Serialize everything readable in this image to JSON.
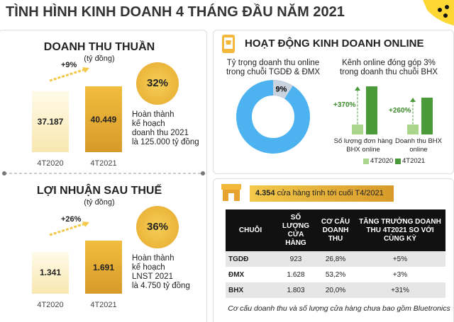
{
  "title": "TÌNH HÌNH KINH DOANH 4 THÁNG ĐẦU NĂM 2021",
  "revenue": {
    "title": "DOANH THU THUẦN",
    "unit": "(tỷ đồng)",
    "categories": [
      "4T2020",
      "4T2021"
    ],
    "values": [
      37187,
      40449
    ],
    "value_labels": [
      "37.187",
      "40.449"
    ],
    "growth": "+9%",
    "completion": "32%",
    "note_lines": [
      "Hoàn thành",
      "kế hoạch",
      "doanh thu 2021",
      "là 125.000 tỷ đồng"
    ]
  },
  "profit": {
    "title": "LỢI NHUẬN SAU THUẾ",
    "unit": "(tỷ đồng)",
    "categories": [
      "4T2020",
      "4T2021"
    ],
    "values": [
      1341,
      1691
    ],
    "value_labels": [
      "1.341",
      "1.691"
    ],
    "growth": "+26%",
    "completion": "36%",
    "note_lines": [
      "Hoàn thành",
      "kế hoạch",
      "LNST 2021",
      "là 4.750 tỷ đồng"
    ]
  },
  "online": {
    "title": "HOẠT ĐỘNG KINH DOANH ONLINE",
    "share": {
      "caption_lines": [
        "Tỷ trọng doanh thu online",
        "trong chuỗi TGDĐ & ĐMX"
      ],
      "value": 9,
      "value_label": "9%"
    },
    "bhx": {
      "caption_lines": [
        "Kênh online đóng góp 3%",
        "trong doanh thu chuỗi BHX"
      ],
      "categories": [
        [
          "Số lượng đơn hàng",
          "BHX online"
        ],
        [
          "Doanh thu BHX",
          "online"
        ]
      ],
      "growth_labels": [
        "+370%",
        "+260%"
      ],
      "series": [
        {
          "name": "4T2020",
          "color": "#a9d68a",
          "values": [
            1,
            1
          ]
        },
        {
          "name": "4T2021",
          "color": "#4a9a3a",
          "values": [
            4.7,
            3.6
          ]
        }
      ]
    }
  },
  "stores": {
    "count": "4.354",
    "caption": "cửa hàng tính tới cuối T4/2021",
    "table": {
      "header": [
        "CHUỖI",
        "SỐ LƯỢNG CỬA HÀNG",
        "CƠ CẤU DOANH THU",
        "TĂNG TRƯỞNG DOANH THU 4T2021 SO VỚI CÙNG KỲ"
      ],
      "rows": [
        [
          "TGDĐ",
          "923",
          "26,8%",
          "+5%"
        ],
        [
          "ĐMX",
          "1.628",
          "53,2%",
          "+3%"
        ],
        [
          "BHX",
          "1.803",
          "20,0%",
          "+31%"
        ]
      ]
    },
    "footnote": "Cơ cấu doanh thu và số lượng cửa hàng chưa bao gồm Bluetronics"
  }
}
